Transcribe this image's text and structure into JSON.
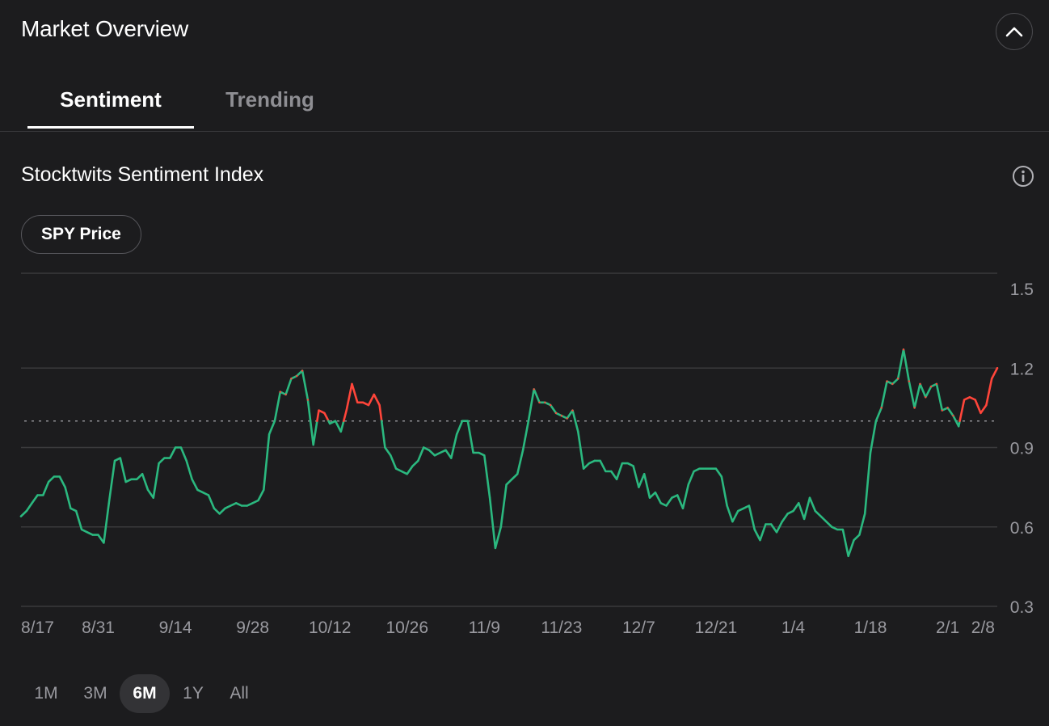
{
  "header": {
    "title": "Market Overview"
  },
  "tabs": [
    {
      "label": "Sentiment",
      "active": true
    },
    {
      "label": "Trending",
      "active": false
    }
  ],
  "section": {
    "title": "Stocktwits Sentiment Index"
  },
  "overlay_toggle": {
    "label": "SPY Price"
  },
  "ranges": [
    {
      "label": "1M",
      "active": false
    },
    {
      "label": "3M",
      "active": false
    },
    {
      "label": "6M",
      "active": true
    },
    {
      "label": "1Y",
      "active": false
    },
    {
      "label": "All",
      "active": false
    }
  ],
  "colors": {
    "background": "#1c1c1e",
    "bullish": "#ff453a",
    "bearish": "#2bb87f",
    "gridline": "#3a3a3c",
    "neutral_line": "#8e8e93",
    "axis_text": "#9a9aa0"
  },
  "chart_data": {
    "type": "line",
    "title": "Stocktwits Sentiment Index",
    "xlabel": "",
    "ylabel": "",
    "x_ticks": [
      "8/17",
      "8/31",
      "9/14",
      "9/28",
      "10/12",
      "10/26",
      "11/9",
      "11/23",
      "12/7",
      "12/21",
      "1/4",
      "1/18",
      "2/1",
      "2/8"
    ],
    "x_tick_positions": [
      0,
      14,
      28,
      42,
      56,
      70,
      84,
      98,
      112,
      126,
      140,
      154,
      168,
      175
    ],
    "y_ticks": [
      0.3,
      0.6,
      0.9,
      1.2,
      1.5
    ],
    "ylim": [
      0.3,
      1.5
    ],
    "neutral_level": 1.0,
    "grid": true,
    "color_rule": "above neutral_level = bullish, below = bearish",
    "series": [
      {
        "values": [
          0.64,
          0.66,
          0.69,
          0.72,
          0.72,
          0.77,
          0.79,
          0.79,
          0.75,
          0.67,
          0.66,
          0.59,
          0.58,
          0.57,
          0.57,
          0.54,
          0.7,
          0.85,
          0.86,
          0.77,
          0.78,
          0.78,
          0.8,
          0.74,
          0.71,
          0.84,
          0.86,
          0.86,
          0.9,
          0.9,
          0.85,
          0.78,
          0.74,
          0.73,
          0.72,
          0.67,
          0.65,
          0.67,
          0.68,
          0.69,
          0.68,
          0.68,
          0.69,
          0.7,
          0.74,
          0.95,
          1.0,
          1.11,
          1.1,
          1.16,
          1.17,
          1.19,
          1.08,
          0.91,
          1.04,
          1.03,
          0.99,
          1.0,
          0.96,
          1.04,
          1.14,
          1.07,
          1.07,
          1.06,
          1.1,
          1.06,
          0.9,
          0.87,
          0.82,
          0.81,
          0.8,
          0.83,
          0.85,
          0.9,
          0.89,
          0.87,
          0.88,
          0.89,
          0.86,
          0.95,
          1.0,
          1.0,
          0.88,
          0.88,
          0.87,
          0.71,
          0.52,
          0.6,
          0.76,
          0.78,
          0.8,
          0.89,
          1.0,
          1.12,
          1.07,
          1.07,
          1.06,
          1.03,
          1.02,
          1.01,
          1.04,
          0.96,
          0.82,
          0.84,
          0.85,
          0.85,
          0.81,
          0.81,
          0.78,
          0.84,
          0.84,
          0.83,
          0.75,
          0.8,
          0.71,
          0.73,
          0.69,
          0.68,
          0.71,
          0.72,
          0.67,
          0.76,
          0.81,
          0.82,
          0.82,
          0.82,
          0.82,
          0.79,
          0.68,
          0.62,
          0.66,
          0.67,
          0.68,
          0.59,
          0.55,
          0.61,
          0.61,
          0.58,
          0.62,
          0.65,
          0.66,
          0.69,
          0.63,
          0.71,
          0.66,
          0.64,
          0.62,
          0.6,
          0.59,
          0.59,
          0.49,
          0.55,
          0.57,
          0.65,
          0.88,
          1.0,
          1.05,
          1.15,
          1.14,
          1.16,
          1.27,
          1.15,
          1.05,
          1.14,
          1.09,
          1.13,
          1.14,
          1.04,
          1.05,
          1.02,
          0.98,
          1.08,
          1.09,
          1.08,
          1.03,
          1.06,
          1.16,
          1.2
        ]
      }
    ]
  }
}
